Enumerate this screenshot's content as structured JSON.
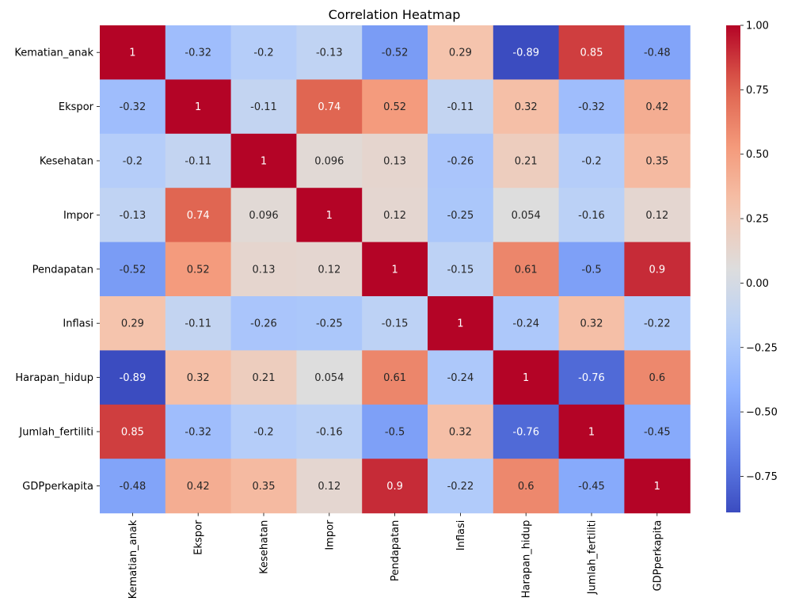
{
  "chart_data": {
    "type": "heatmap",
    "title": "Correlation Heatmap",
    "x_labels": [
      "Kematian_anak",
      "Ekspor",
      "Kesehatan",
      "Impor",
      "Pendapatan",
      "Inflasi",
      "Harapan_hidup",
      "Jumlah_fertiliti",
      "GDPperkapita"
    ],
    "y_labels": [
      "Kematian_anak",
      "Ekspor",
      "Kesehatan",
      "Impor",
      "Pendapatan",
      "Inflasi",
      "Harapan_hidup",
      "Jumlah_fertiliti",
      "GDPperkapita"
    ],
    "values": [
      [
        1,
        -0.32,
        -0.2,
        -0.13,
        -0.52,
        0.29,
        -0.89,
        0.85,
        -0.48
      ],
      [
        -0.32,
        1,
        -0.11,
        0.74,
        0.52,
        -0.11,
        0.32,
        -0.32,
        0.42
      ],
      [
        -0.2,
        -0.11,
        1,
        0.096,
        0.13,
        -0.26,
        0.21,
        -0.2,
        0.35
      ],
      [
        -0.13,
        0.74,
        0.096,
        1,
        0.12,
        -0.25,
        0.054,
        -0.16,
        0.12
      ],
      [
        -0.52,
        0.52,
        0.13,
        0.12,
        1,
        -0.15,
        0.61,
        -0.5,
        0.9
      ],
      [
        0.29,
        -0.11,
        -0.26,
        -0.25,
        -0.15,
        1,
        -0.24,
        0.32,
        -0.22
      ],
      [
        -0.89,
        0.32,
        0.21,
        0.054,
        0.61,
        -0.24,
        1,
        -0.76,
        0.6
      ],
      [
        0.85,
        -0.32,
        -0.2,
        -0.16,
        -0.5,
        0.32,
        -0.76,
        1,
        -0.45
      ],
      [
        -0.48,
        0.42,
        0.35,
        0.12,
        0.9,
        -0.22,
        0.6,
        -0.45,
        1
      ]
    ],
    "value_labels": [
      [
        "1",
        "-0.32",
        "-0.2",
        "-0.13",
        "-0.52",
        "0.29",
        "-0.89",
        "0.85",
        "-0.48"
      ],
      [
        "-0.32",
        "1",
        "-0.11",
        "0.74",
        "0.52",
        "-0.11",
        "0.32",
        "-0.32",
        "0.42"
      ],
      [
        "-0.2",
        "-0.11",
        "1",
        "0.096",
        "0.13",
        "-0.26",
        "0.21",
        "-0.2",
        "0.35"
      ],
      [
        "-0.13",
        "0.74",
        "0.096",
        "1",
        "0.12",
        "-0.25",
        "0.054",
        "-0.16",
        "0.12"
      ],
      [
        "-0.52",
        "0.52",
        "0.13",
        "0.12",
        "1",
        "-0.15",
        "0.61",
        "-0.5",
        "0.9"
      ],
      [
        "0.29",
        "-0.11",
        "-0.26",
        "-0.25",
        "-0.15",
        "1",
        "-0.24",
        "0.32",
        "-0.22"
      ],
      [
        "-0.89",
        "0.32",
        "0.21",
        "0.054",
        "0.61",
        "-0.24",
        "1",
        "-0.76",
        "0.6"
      ],
      [
        "0.85",
        "-0.32",
        "-0.2",
        "-0.16",
        "-0.5",
        "0.32",
        "-0.76",
        "1",
        "-0.45"
      ],
      [
        "-0.48",
        "0.42",
        "0.35",
        "0.12",
        "0.9",
        "-0.22",
        "0.6",
        "-0.45",
        "1"
      ]
    ],
    "colorscale": "coolwarm",
    "vmin": -0.89,
    "vmax": 1.0,
    "colorbar_ticks": [
      1.0,
      0.75,
      0.5,
      0.25,
      0.0,
      -0.25,
      -0.5,
      -0.75
    ],
    "colorbar_tick_labels": [
      "1.00",
      "0.75",
      "0.50",
      "0.25",
      "0.00",
      "−0.25",
      "−0.50",
      "−0.75"
    ],
    "annotation_dark_color": "#262626",
    "annotation_light_color": "#ffffff"
  }
}
